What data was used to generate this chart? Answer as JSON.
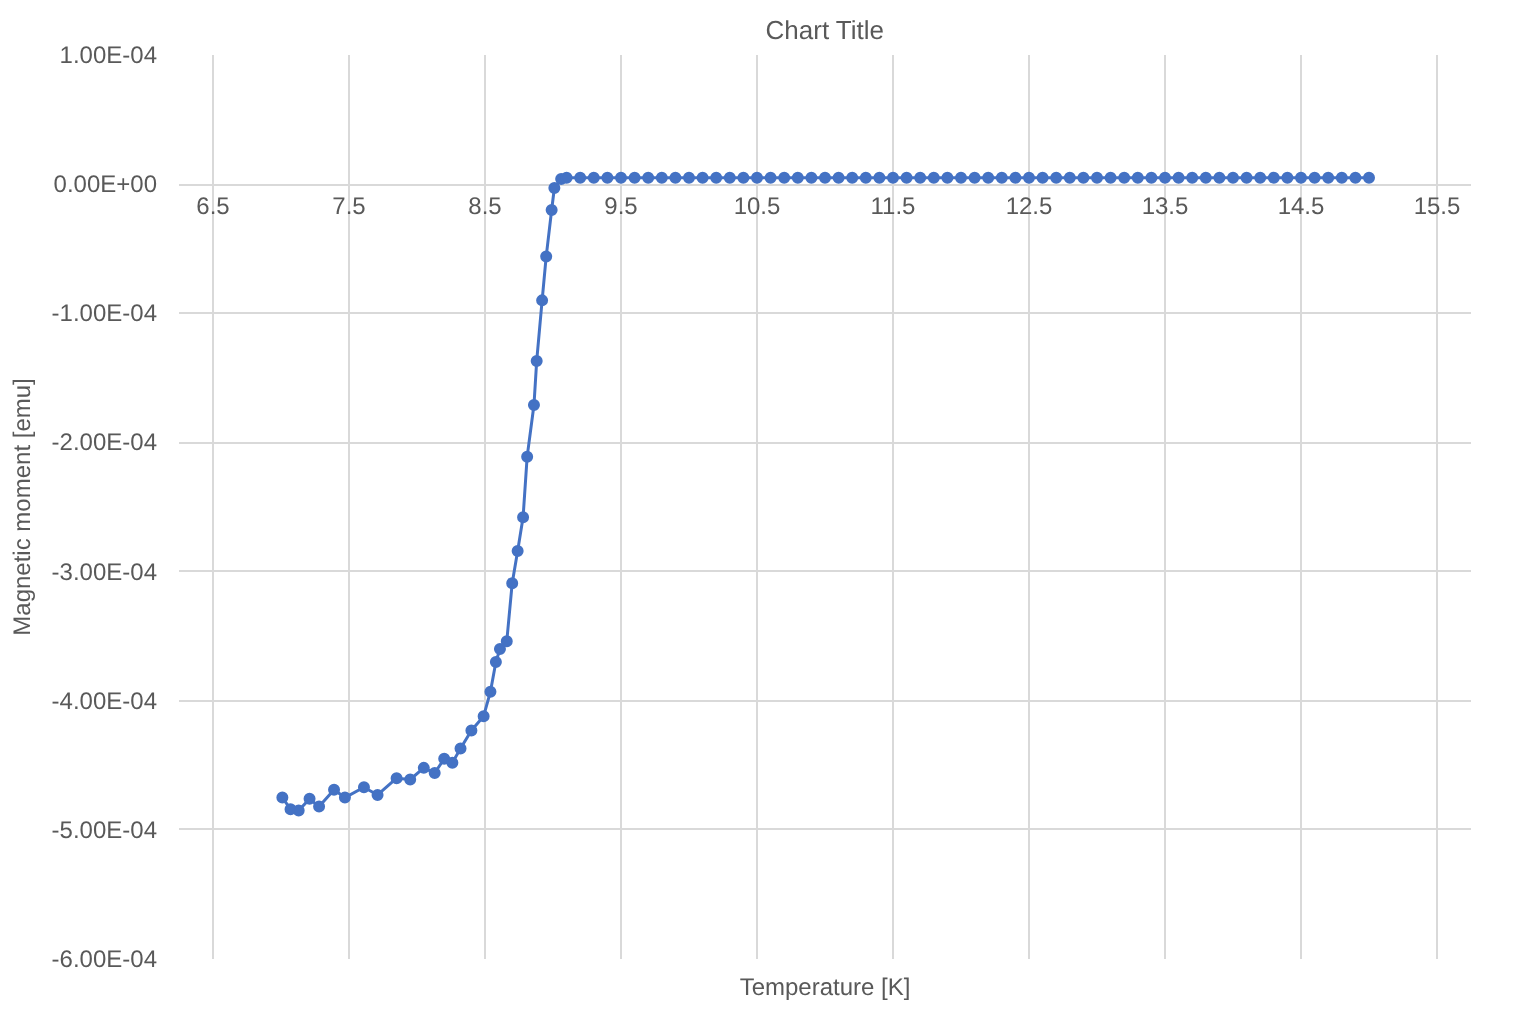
{
  "chart_data": {
    "type": "line",
    "title": "Chart Title",
    "xlabel": "Temperature [K]",
    "ylabel": "Magnetic moment [emu]",
    "xlim": [
      6.5,
      15.5
    ],
    "xticks": [
      6.5,
      7.5,
      8.5,
      9.5,
      10.5,
      11.5,
      12.5,
      13.5,
      14.5,
      15.5
    ],
    "ylim": [
      -0.0006,
      0.0001
    ],
    "yticks": [
      {
        "value": 0.0001,
        "label": "1.00E-04"
      },
      {
        "value": 0,
        "label": "0.00E+00"
      },
      {
        "value": -0.0001,
        "label": "-1.00E-04"
      },
      {
        "value": -0.0002,
        "label": "-2.00E-04"
      },
      {
        "value": -0.0003,
        "label": "-3.00E-04"
      },
      {
        "value": -0.0004,
        "label": "-4.00E-04"
      },
      {
        "value": -0.0005,
        "label": "-5.00E-04"
      },
      {
        "value": -0.0006,
        "label": "-6.00E-04"
      }
    ],
    "grid": true,
    "marker": "circle",
    "line_style": "solid",
    "series": [
      {
        "color": "#4472c4",
        "x": [
          7.01,
          7.07,
          7.13,
          7.21,
          7.28,
          7.39,
          7.47,
          7.61,
          7.71,
          7.85,
          7.95,
          8.05,
          8.13,
          8.2,
          8.26,
          8.32,
          8.4,
          8.49,
          8.54,
          8.58,
          8.61,
          8.66,
          8.7,
          8.74,
          8.78,
          8.81,
          8.86,
          8.88,
          8.92,
          8.95,
          8.99,
          9.01,
          9.06,
          9.1,
          9.2,
          9.3,
          9.4,
          9.5,
          9.6,
          9.7,
          9.8,
          9.9,
          10.0,
          10.1,
          10.2,
          10.3,
          10.4,
          10.5,
          10.6,
          10.7,
          10.8,
          10.9,
          11.0,
          11.1,
          11.2,
          11.3,
          11.4,
          11.5,
          11.6,
          11.7,
          11.8,
          11.9,
          12.0,
          12.1,
          12.2,
          12.3,
          12.4,
          12.5,
          12.6,
          12.7,
          12.8,
          12.9,
          13.0,
          13.1,
          13.2,
          13.3,
          13.4,
          13.5,
          13.6,
          13.7,
          13.8,
          13.9,
          14.0,
          14.1,
          14.2,
          14.3,
          14.4,
          14.5,
          14.6,
          14.7,
          14.8,
          14.9,
          15.0
        ],
        "values": [
          -0.000475,
          -0.000484,
          -0.000485,
          -0.000476,
          -0.000482,
          -0.000469,
          -0.000475,
          -0.000467,
          -0.000473,
          -0.00046,
          -0.000461,
          -0.000452,
          -0.000456,
          -0.000445,
          -0.000448,
          -0.000437,
          -0.000423,
          -0.000412,
          -0.000393,
          -0.00037,
          -0.00036,
          -0.000354,
          -0.000309,
          -0.000284,
          -0.000258,
          -0.000211,
          -0.000171,
          -0.000137,
          -9e-05,
          -5.6e-05,
          -2e-05,
          -3e-06,
          4e-06,
          5e-06,
          5e-06,
          5e-06,
          5e-06,
          5e-06,
          5e-06,
          5e-06,
          5e-06,
          5e-06,
          5e-06,
          5e-06,
          5e-06,
          5e-06,
          5e-06,
          5e-06,
          5e-06,
          5e-06,
          5e-06,
          5e-06,
          5e-06,
          5e-06,
          5e-06,
          5e-06,
          5e-06,
          5e-06,
          5e-06,
          5e-06,
          5e-06,
          5e-06,
          5e-06,
          5e-06,
          5e-06,
          5e-06,
          5e-06,
          5e-06,
          5e-06,
          5e-06,
          5e-06,
          5e-06,
          5e-06,
          5e-06,
          5e-06,
          5e-06,
          5e-06,
          5e-06,
          5e-06,
          5e-06,
          5e-06,
          5e-06,
          5e-06,
          5e-06,
          5e-06,
          5e-06,
          5e-06,
          5e-06,
          5e-06,
          5e-06,
          5e-06,
          5e-06,
          5e-06
        ]
      }
    ]
  }
}
